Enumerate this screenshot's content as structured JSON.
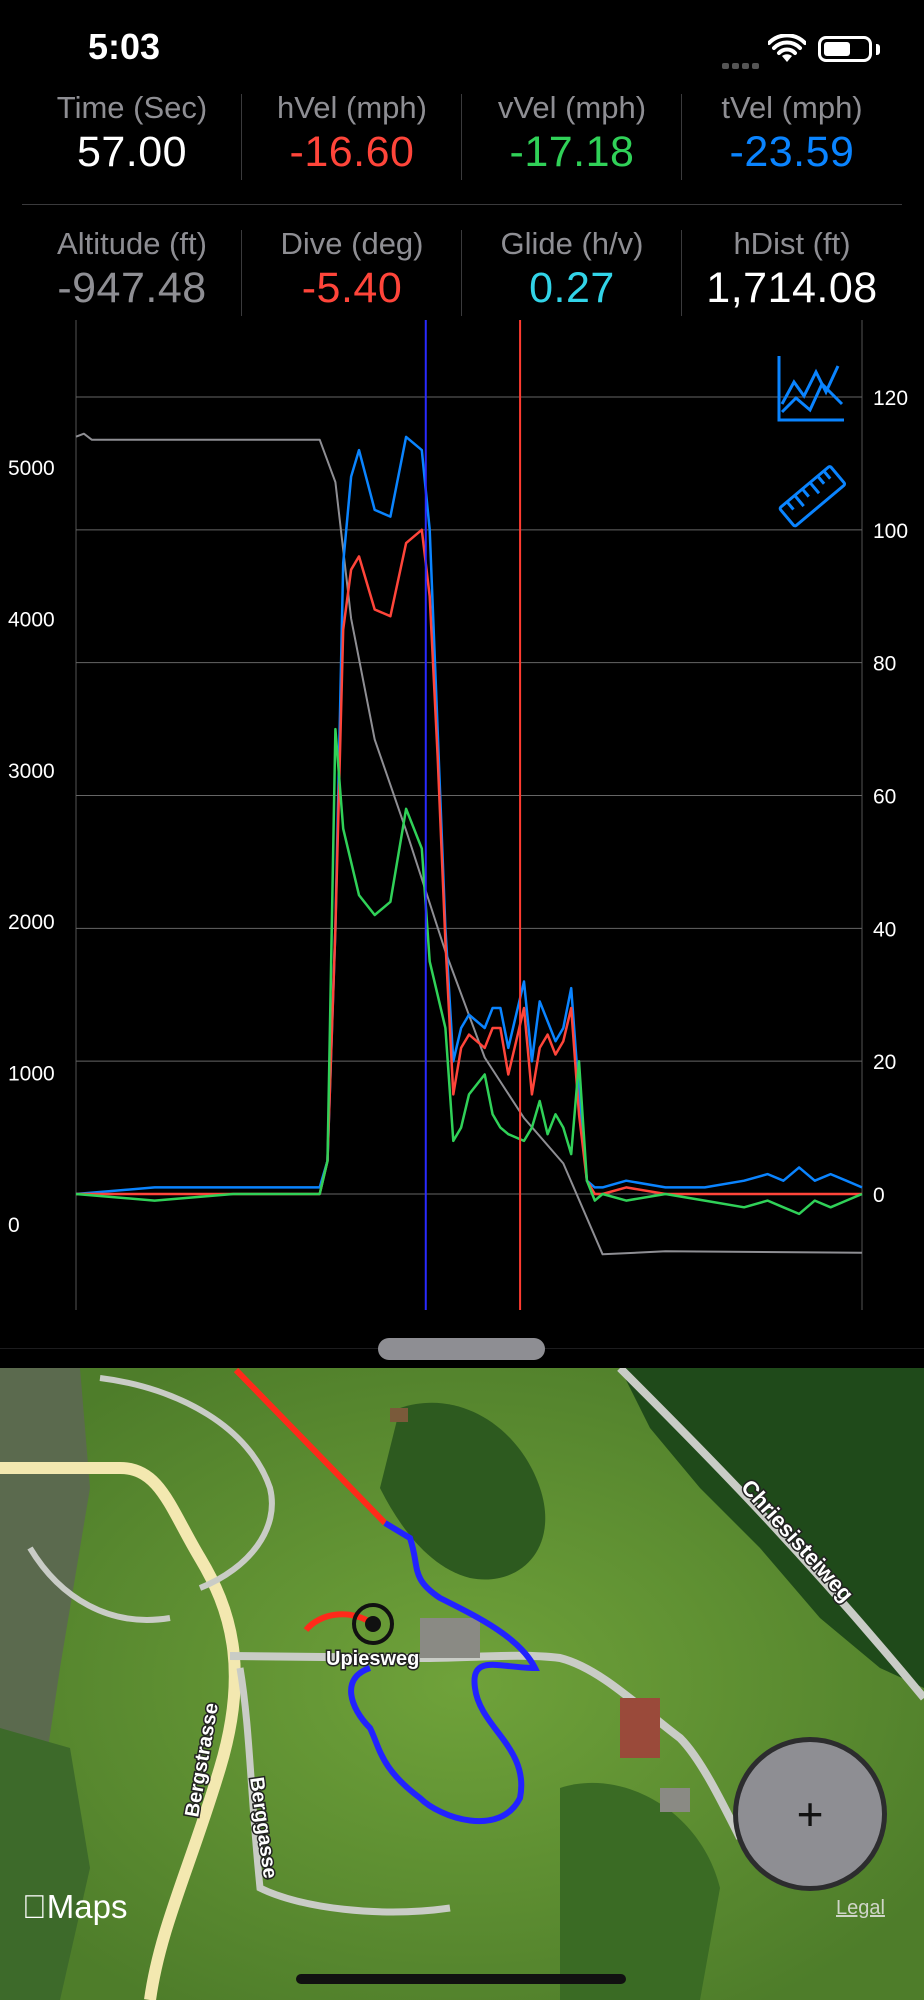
{
  "status_bar": {
    "time": "5:03"
  },
  "metrics": {
    "row1": [
      {
        "label": "Time (Sec)",
        "value": "57.00",
        "color": "#ffffff"
      },
      {
        "label": "hVel (mph)",
        "value": "-16.60",
        "color": "#ff453a"
      },
      {
        "label": "vVel (mph)",
        "value": "-17.18",
        "color": "#30d158"
      },
      {
        "label": "tVel (mph)",
        "value": "-23.59",
        "color": "#0a84ff"
      }
    ],
    "row2": [
      {
        "label": "Altitude (ft)",
        "value": "-947.48",
        "color": "#8e8e93"
      },
      {
        "label": "Dive (deg)",
        "value": "-5.40",
        "color": "#ff453a"
      },
      {
        "label": "Glide (h/v)",
        "value": "0.27",
        "color": "#32d4e8"
      },
      {
        "label": "hDist (ft)",
        "value": "1,714.08",
        "color": "#ffffff"
      }
    ]
  },
  "chart_tools": {
    "chart_icon": "line-chart-icon",
    "ruler_icon": "ruler-icon",
    "accent": "#0a84ff"
  },
  "chart_data": {
    "type": "line",
    "left_axis_ticks": [
      "5000",
      "4000",
      "3000",
      "2000",
      "1000",
      "0"
    ],
    "right_axis_ticks": [
      "120",
      "100",
      "80",
      "60",
      "40",
      "20",
      "0"
    ],
    "left_ylim": [
      -700,
      5900
    ],
    "right_ylim": [
      -15,
      130
    ],
    "x_range": [
      0,
      100
    ],
    "grid": true,
    "series": [
      {
        "color": "#8e8e93",
        "axis": "left",
        "x": [
          0,
          1,
          2,
          31,
          33,
          35,
          38,
          42,
          47,
          52,
          57,
          62,
          67,
          75,
          100
        ],
        "y": [
          5200,
          5220,
          5180,
          5180,
          4900,
          4000,
          3200,
          2600,
          1800,
          1100,
          700,
          400,
          -200,
          -180,
          -190
        ]
      },
      {
        "color": "#0a84ff",
        "axis": "right",
        "x": [
          0,
          10,
          20,
          31,
          32,
          33,
          34,
          35,
          36,
          38,
          40,
          42,
          44,
          45,
          46,
          47,
          48,
          49,
          50,
          52,
          53,
          54,
          55,
          57,
          58,
          59,
          60,
          61,
          62,
          63,
          64,
          65,
          66,
          67,
          70,
          75,
          80,
          85,
          88,
          90,
          92,
          94,
          96,
          98,
          100
        ],
        "y": [
          0,
          1,
          1,
          1,
          5,
          40,
          95,
          108,
          112,
          103,
          102,
          114,
          112,
          100,
          70,
          40,
          20,
          25,
          27,
          25,
          28,
          28,
          22,
          32,
          20,
          29,
          26,
          23,
          25,
          31,
          15,
          2,
          1,
          1,
          2,
          1,
          1,
          2,
          3,
          2,
          4,
          2,
          3,
          2,
          1
        ]
      },
      {
        "color": "#ff453a",
        "axis": "right",
        "x": [
          0,
          10,
          20,
          31,
          32,
          33,
          34,
          35,
          36,
          38,
          40,
          42,
          44,
          45,
          46,
          47,
          48,
          49,
          50,
          52,
          53,
          54,
          55,
          57,
          58,
          59,
          60,
          61,
          62,
          63,
          64,
          65,
          66,
          67,
          70,
          75,
          80,
          85,
          88,
          90,
          92,
          94,
          96,
          98,
          100
        ],
        "y": [
          0,
          0,
          0,
          0,
          5,
          40,
          85,
          94,
          96,
          88,
          87,
          98,
          100,
          90,
          66,
          38,
          15,
          22,
          24,
          22,
          25,
          25,
          18,
          28,
          15,
          22,
          24,
          21,
          23,
          28,
          12,
          2,
          0,
          0,
          1,
          0,
          0,
          0,
          0,
          0,
          0,
          0,
          0,
          0,
          0
        ]
      },
      {
        "color": "#30d158",
        "axis": "right",
        "x": [
          0,
          10,
          20,
          31,
          32,
          33,
          34,
          35,
          36,
          38,
          40,
          42,
          44,
          45,
          46,
          47,
          48,
          49,
          50,
          52,
          53,
          54,
          55,
          57,
          58,
          59,
          60,
          61,
          62,
          63,
          64,
          65,
          66,
          67,
          70,
          75,
          80,
          85,
          88,
          90,
          92,
          94,
          96,
          98,
          100
        ],
        "y": [
          0,
          -1,
          0,
          0,
          5,
          70,
          55,
          50,
          45,
          42,
          44,
          58,
          52,
          35,
          30,
          25,
          8,
          10,
          15,
          18,
          12,
          10,
          9,
          8,
          10,
          14,
          9,
          12,
          10,
          6,
          20,
          2,
          -1,
          0,
          -1,
          0,
          -1,
          -2,
          -1,
          -2,
          -3,
          -1,
          -2,
          -1,
          0
        ]
      }
    ],
    "markers": [
      {
        "x": 44.5,
        "color": "#2a2aff"
      },
      {
        "x": 56.5,
        "color": "#ff3b30"
      }
    ]
  },
  "map": {
    "road_labels": [
      "Chriesisteiweg",
      "Upiesweg",
      "Bergstrasse",
      "Berggasse"
    ],
    "maps_label": "Maps",
    "legal": "Legal",
    "zoom_symbol": "+"
  }
}
